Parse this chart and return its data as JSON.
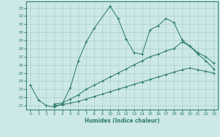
{
  "xlabel": "Humidex (Indice chaleur)",
  "bg_color": "#cce8e8",
  "grid_color": "#aacccc",
  "line_color": "#2e7d6e",
  "x_ticks": [
    0,
    1,
    2,
    3,
    4,
    5,
    6,
    7,
    8,
    9,
    10,
    11,
    12,
    13,
    14,
    15,
    16,
    17,
    18,
    19,
    20,
    21,
    22,
    23
  ],
  "y_ticks": [
    21,
    22,
    23,
    24,
    25,
    26,
    27,
    28,
    29,
    30,
    31,
    32,
    33
  ],
  "ylim": [
    20.5,
    33.8
  ],
  "xlim": [
    -0.5,
    23.5
  ],
  "line1_x": [
    0,
    1,
    2,
    3,
    4,
    5,
    6,
    7,
    8,
    10,
    11,
    12,
    13,
    14,
    15,
    16,
    17,
    18,
    19,
    20,
    21,
    22,
    23
  ],
  "line1_y": [
    23.5,
    21.7,
    21.0,
    20.8,
    21.2,
    23.2,
    26.5,
    28.8,
    30.5,
    33.2,
    31.7,
    29.2,
    27.5,
    27.3,
    30.3,
    30.8,
    31.7,
    31.2,
    29.1,
    28.3,
    27.5,
    27.0,
    26.2
  ],
  "line2_x": [
    3,
    4,
    5,
    6,
    7,
    8,
    9,
    10,
    11,
    12,
    13,
    14,
    15,
    16,
    17,
    18,
    19,
    20,
    21,
    22,
    23
  ],
  "line2_y": [
    21.2,
    21.3,
    21.8,
    22.3,
    23.0,
    23.5,
    24.0,
    24.5,
    25.0,
    25.5,
    26.0,
    26.5,
    27.0,
    27.3,
    27.7,
    28.0,
    28.8,
    28.3,
    27.3,
    26.5,
    25.5
  ],
  "line3_x": [
    3,
    4,
    5,
    6,
    7,
    8,
    9,
    10,
    11,
    12,
    13,
    14,
    15,
    16,
    17,
    18,
    19,
    20,
    21,
    22,
    23
  ],
  "line3_y": [
    21.0,
    21.1,
    21.3,
    21.5,
    21.8,
    22.1,
    22.4,
    22.7,
    23.0,
    23.3,
    23.6,
    23.9,
    24.2,
    24.5,
    24.8,
    25.1,
    25.4,
    25.6,
    25.4,
    25.2,
    25.0
  ]
}
